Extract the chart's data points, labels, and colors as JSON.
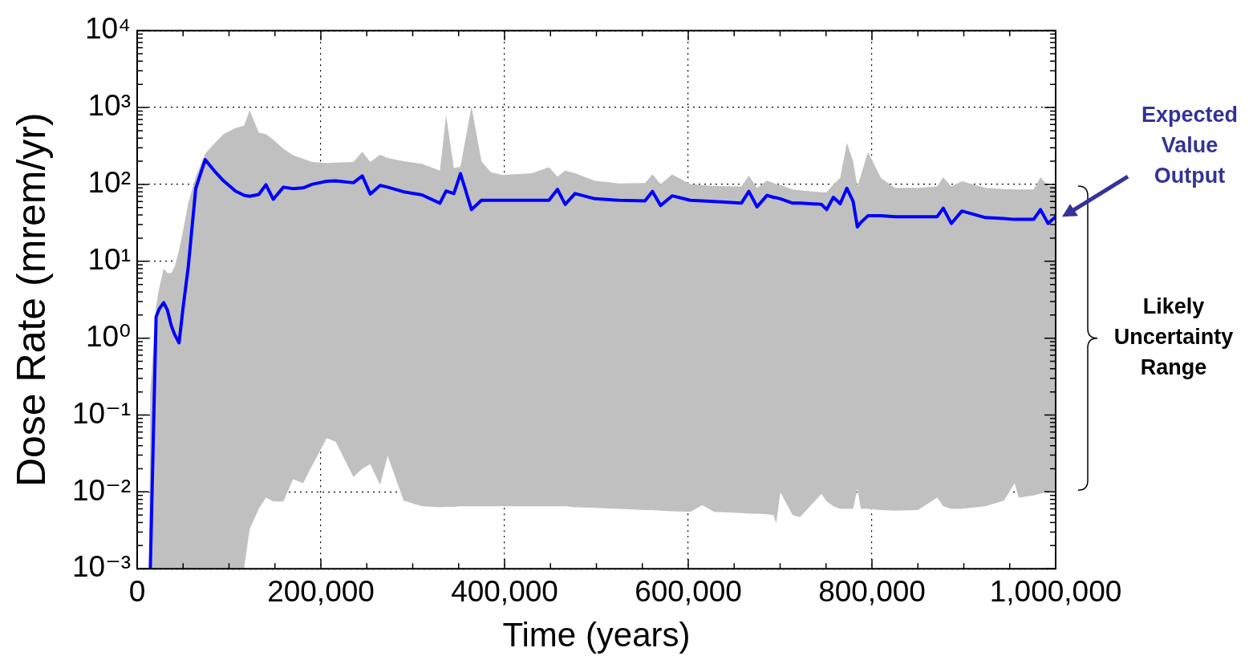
{
  "chart_data": {
    "type": "line",
    "xlabel": "Time (years)",
    "ylabel": "Dose Rate (mrem/yr)",
    "log": "y",
    "grid": true,
    "xlim": [
      0,
      1000000
    ],
    "ylim": [
      0.001,
      10000
    ],
    "xticks": [
      0,
      {
        "value": 50000,
        "label": null
      },
      {
        "value": 100000,
        "label": null
      },
      {
        "value": 150000,
        "label": null
      },
      {
        "value": 200000,
        "label": "200,000"
      },
      {
        "value": 250000,
        "label": null
      },
      {
        "value": 300000,
        "label": null
      },
      {
        "value": 350000,
        "label": null
      },
      {
        "value": 400000,
        "label": "400,000"
      },
      {
        "value": 450000,
        "label": null
      },
      {
        "value": 500000,
        "label": null
      },
      {
        "value": 550000,
        "label": null
      },
      {
        "value": 600000,
        "label": "600,000"
      },
      {
        "value": 650000,
        "label": null
      },
      {
        "value": 700000,
        "label": null
      },
      {
        "value": 750000,
        "label": null
      },
      {
        "value": 800000,
        "label": "800,000"
      },
      {
        "value": 850000,
        "label": null
      },
      {
        "value": 900000,
        "label": null
      },
      {
        "value": 950000,
        "label": null
      },
      {
        "value": 1000000,
        "label": "1,000,000"
      }
    ],
    "yticks": [
      {
        "value": 0.001,
        "label": "10⁻³"
      },
      {
        "value": 0.002,
        "label": null
      },
      {
        "value": 0.003,
        "label": null
      },
      {
        "value": 0.004,
        "label": null
      },
      {
        "value": 0.005,
        "label": null
      },
      {
        "value": 0.006,
        "label": null
      },
      {
        "value": 0.007,
        "label": null
      },
      {
        "value": 0.008,
        "label": null
      },
      {
        "value": 0.009,
        "label": null
      },
      {
        "value": 0.01,
        "label": "10⁻²"
      },
      {
        "value": 0.02,
        "label": null
      },
      {
        "value": 0.03,
        "label": null
      },
      {
        "value": 0.04,
        "label": null
      },
      {
        "value": 0.05,
        "label": null
      },
      {
        "value": 0.06,
        "label": null
      },
      {
        "value": 0.07,
        "label": null
      },
      {
        "value": 0.08,
        "label": null
      },
      {
        "value": 0.09,
        "label": null
      },
      {
        "value": 0.1,
        "label": "10⁻¹"
      },
      {
        "value": 0.2,
        "label": null
      },
      {
        "value": 0.3,
        "label": null
      },
      {
        "value": 0.4,
        "label": null
      },
      {
        "value": 0.5,
        "label": null
      },
      {
        "value": 0.6,
        "label": null
      },
      {
        "value": 0.7,
        "label": null
      },
      {
        "value": 0.8,
        "label": null
      },
      {
        "value": 0.9,
        "label": null
      },
      {
        "value": 1,
        "label": "10⁰"
      },
      {
        "value": 2,
        "label": null
      },
      {
        "value": 3,
        "label": null
      },
      {
        "value": 4,
        "label": null
      },
      {
        "value": 5,
        "label": null
      },
      {
        "value": 6,
        "label": null
      },
      {
        "value": 7,
        "label": null
      },
      {
        "value": 8,
        "label": null
      },
      {
        "value": 9,
        "label": null
      },
      {
        "value": 10,
        "label": "10¹"
      },
      {
        "value": 20,
        "label": null
      },
      {
        "value": 30,
        "label": null
      },
      {
        "value": 40,
        "label": null
      },
      {
        "value": 50,
        "label": null
      },
      {
        "value": 60,
        "label": null
      },
      {
        "value": 70,
        "label": null
      },
      {
        "value": 80,
        "label": null
      },
      {
        "value": 90,
        "label": null
      },
      {
        "value": 100,
        "label": "10²"
      },
      {
        "value": 200,
        "label": null
      },
      {
        "value": 300,
        "label": null
      },
      {
        "value": 400,
        "label": null
      },
      {
        "value": 500,
        "label": null
      },
      {
        "value": 600,
        "label": null
      },
      {
        "value": 700,
        "label": null
      },
      {
        "value": 800,
        "label": null
      },
      {
        "value": 900,
        "label": null
      },
      {
        "value": 1000,
        "label": "10³"
      },
      {
        "value": 2000,
        "label": null
      },
      {
        "value": 3000,
        "label": null
      },
      {
        "value": 4000,
        "label": null
      },
      {
        "value": 5000,
        "label": null
      },
      {
        "value": 6000,
        "label": null
      },
      {
        "value": 7000,
        "label": null
      },
      {
        "value": 8000,
        "label": null
      },
      {
        "value": 9000,
        "label": null
      },
      {
        "value": 10000,
        "label": "10⁴"
      }
    ],
    "x": [
      13000,
      14300,
      20600,
      24000,
      28900,
      33000,
      37100,
      41000,
      45600,
      50000,
      55600,
      63800,
      74000,
      84000,
      94100,
      107000,
      116300,
      122500,
      132400,
      140200,
      148200,
      159200,
      169700,
      180700,
      190300,
      206400,
      216100,
      235400,
      245100,
      253800,
      264500,
      272700,
      290100,
      310000,
      329600,
      336300,
      344800,
      352000,
      364000,
      374800,
      385000,
      398000,
      430000,
      448300,
      457600,
      466000,
      476700,
      498400,
      525000,
      552900,
      561000,
      569900,
      582400,
      602100,
      615300,
      628200,
      657800,
      666000,
      674900,
      685700,
      692600,
      695800,
      700300,
      713600,
      721600,
      745000,
      750700,
      758000,
      765400,
      772700,
      779500,
      784100,
      787900,
      795600,
      810000,
      825100,
      850000,
      871000,
      877600,
      886400,
      897900,
      923500,
      943700,
      955300,
      959800,
      976000,
      983500,
      991700,
      1000000
    ],
    "series": [
      {
        "color": "#0000ff",
        "values": [
          null,
          0.001,
          1.9,
          2.4,
          2.9,
          2.3,
          1.46,
          1.1,
          0.87,
          2.5,
          8.4,
          89,
          210,
          150,
          111,
          82,
          72,
          70,
          74,
          99,
          64,
          92,
          88,
          90,
          100,
          110,
          111,
          105,
          129,
          75,
          97,
          92,
          80,
          73,
          57,
          82,
          76,
          138,
          47,
          62,
          62,
          62,
          62,
          62,
          86,
          55,
          76,
          65,
          62,
          61,
          81,
          53,
          71,
          62,
          61,
          60,
          57,
          81,
          51,
          72,
          68,
          67,
          65,
          57,
          57,
          55,
          47,
          68,
          56,
          89,
          60,
          28,
          32,
          39,
          39,
          38,
          38,
          38,
          49,
          31,
          45,
          37,
          36,
          35,
          35,
          35,
          47,
          31,
          38
        ],
        "upper": [
          0.001,
          0.2,
          2.6,
          4.5,
          8,
          7,
          7,
          8.5,
          14,
          25,
          57,
          126,
          250,
          340,
          450,
          540,
          580,
          920,
          470,
          450,
          380,
          290,
          240,
          215,
          195,
          190,
          192,
          195,
          265,
          195,
          243,
          220,
          200,
          185,
          151,
          790,
          162,
          170,
          1030,
          200,
          144,
          132,
          140,
          167,
          126,
          151,
          140,
          111,
          103,
          104,
          135,
          101,
          135,
          101,
          98,
          95,
          94,
          130,
          90,
          112,
          105,
          100,
          98,
          86,
          84,
          79,
          79,
          100,
          122,
          345,
          200,
          94,
          130,
          263,
          120,
          90,
          90,
          94,
          124,
          94,
          110,
          90,
          87,
          86,
          86,
          86,
          124,
          95,
          95
        ],
        "lower": [
          0.001,
          0.001,
          0.001,
          0.001,
          0.001,
          0.001,
          0.001,
          0.001,
          0.001,
          0.001,
          0.001,
          0.001,
          0.001,
          0.001,
          0.001,
          0.001,
          0.001,
          0.0033,
          0.006,
          0.0084,
          0.0075,
          0.0075,
          0.0146,
          0.013,
          0.0218,
          0.05,
          0.045,
          0.0156,
          0.02,
          0.023,
          0.0123,
          0.0295,
          0.0077,
          0.0065,
          0.0063,
          0.0064,
          0.0064,
          0.0065,
          0.0065,
          0.0065,
          0.0065,
          0.0065,
          0.0065,
          0.0065,
          0.0065,
          0.0065,
          0.0063,
          0.0062,
          0.006,
          0.0058,
          0.0058,
          0.0057,
          0.0056,
          0.0055,
          0.0067,
          0.0055,
          0.0053,
          0.0052,
          0.0052,
          0.0051,
          0.005,
          0.0039,
          0.0099,
          0.005,
          0.0047,
          0.0094,
          0.0075,
          0.0065,
          0.006,
          0.006,
          0.006,
          0.011,
          0.006,
          0.006,
          0.0058,
          0.0057,
          0.0058,
          0.0084,
          0.0065,
          0.006,
          0.006,
          0.0065,
          0.0077,
          0.013,
          0.0084,
          0.009,
          0.0095,
          0.01,
          0.0105
        ]
      }
    ],
    "annotations": [
      "Expected Value Output",
      "Likely Uncertainty Range"
    ]
  }
}
